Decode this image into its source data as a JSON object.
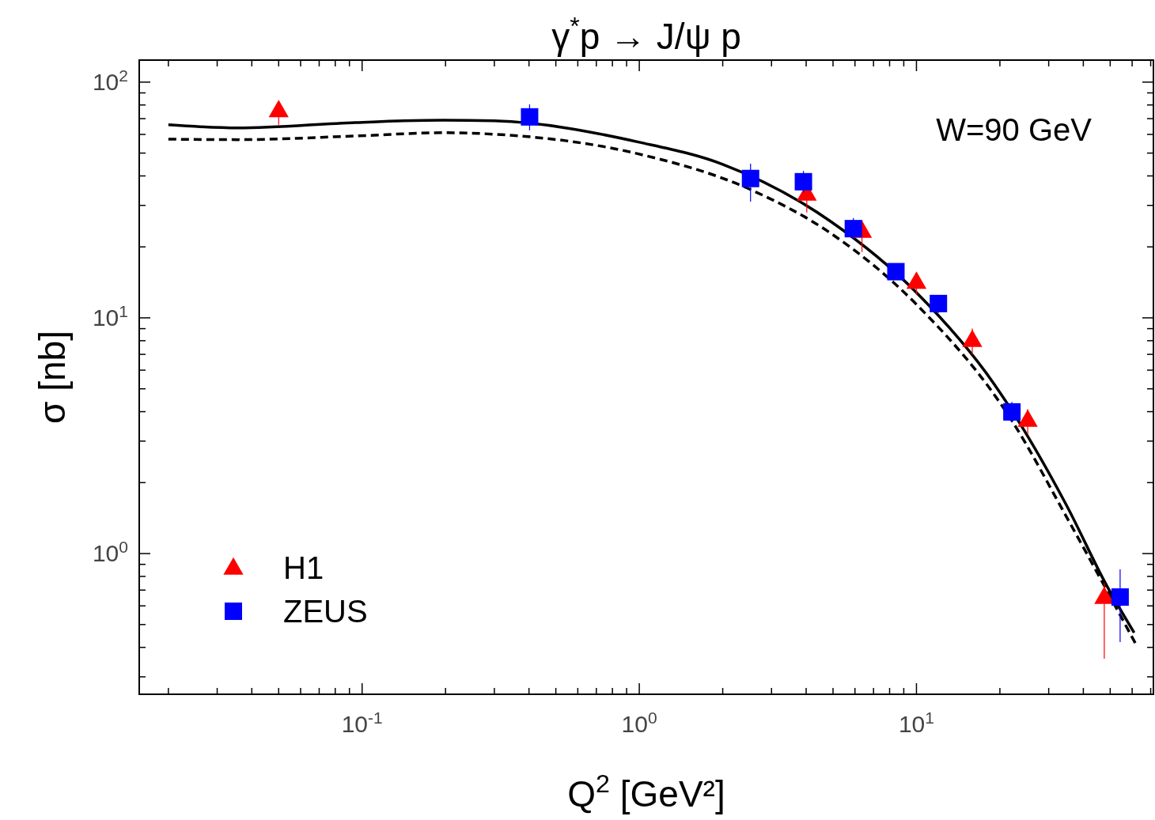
{
  "chart_data": {
    "type": "scatter",
    "title": "γ$^{*}$p → J/ψ p",
    "xlabel": "Q$^{2}$ [GeV²]",
    "ylabel": "σ [nb]",
    "annotations": [
      "W=90 GeV"
    ],
    "log": "xy",
    "grid": false,
    "legend": "bottom left",
    "xlim": [
      0.0157,
      71.6
    ],
    "ylim": [
      0.253,
      124
    ],
    "xticks": [
      {
        "value": 0.02,
        "label": null
      },
      {
        "value": 0.03,
        "label": null
      },
      {
        "value": 0.04,
        "label": null
      },
      {
        "value": 0.05,
        "label": null
      },
      {
        "value": 0.06,
        "label": null
      },
      {
        "value": 0.07,
        "label": null
      },
      {
        "value": 0.08,
        "label": null
      },
      {
        "value": 0.09,
        "label": null
      },
      {
        "value": 0.1,
        "label": "10$^{-1}$"
      },
      {
        "value": 0.2,
        "label": null
      },
      {
        "value": 0.3,
        "label": null
      },
      {
        "value": 0.4,
        "label": null
      },
      {
        "value": 0.5,
        "label": null
      },
      {
        "value": 0.6,
        "label": null
      },
      {
        "value": 0.7,
        "label": null
      },
      {
        "value": 0.8,
        "label": null
      },
      {
        "value": 0.9,
        "label": null
      },
      {
        "value": 1,
        "label": "10$^{0}$"
      },
      {
        "value": 2,
        "label": null
      },
      {
        "value": 3,
        "label": null
      },
      {
        "value": 4,
        "label": null
      },
      {
        "value": 5,
        "label": null
      },
      {
        "value": 6,
        "label": null
      },
      {
        "value": 7,
        "label": null
      },
      {
        "value": 8,
        "label": null
      },
      {
        "value": 9,
        "label": null
      },
      {
        "value": 10,
        "label": "10$^{1}$"
      },
      {
        "value": 20,
        "label": null
      },
      {
        "value": 30,
        "label": null
      },
      {
        "value": 40,
        "label": null
      },
      {
        "value": 50,
        "label": null
      },
      {
        "value": 60,
        "label": null
      },
      {
        "value": 70,
        "label": null
      }
    ],
    "yticks": [
      {
        "value": 0.3,
        "label": null
      },
      {
        "value": 0.4,
        "label": null
      },
      {
        "value": 0.5,
        "label": null
      },
      {
        "value": 0.6,
        "label": null
      },
      {
        "value": 0.7,
        "label": null
      },
      {
        "value": 0.8,
        "label": null
      },
      {
        "value": 0.9,
        "label": null
      },
      {
        "value": 1,
        "label": "10$^{0}$"
      },
      {
        "value": 2,
        "label": null
      },
      {
        "value": 3,
        "label": null
      },
      {
        "value": 4,
        "label": null
      },
      {
        "value": 5,
        "label": null
      },
      {
        "value": 6,
        "label": null
      },
      {
        "value": 7,
        "label": null
      },
      {
        "value": 8,
        "label": null
      },
      {
        "value": 9,
        "label": null
      },
      {
        "value": 10,
        "label": "10$^{1}$"
      },
      {
        "value": 20,
        "label": null
      },
      {
        "value": 30,
        "label": null
      },
      {
        "value": 40,
        "label": null
      },
      {
        "value": 50,
        "label": null
      },
      {
        "value": 60,
        "label": null
      },
      {
        "value": 70,
        "label": null
      },
      {
        "value": 80,
        "label": null
      },
      {
        "value": 90,
        "label": null
      },
      {
        "value": 100,
        "label": "10$^{2}$"
      }
    ],
    "series": [
      {
        "type": "line",
        "color": "#000000",
        "line_style": "solid",
        "marker": "none",
        "x": [
          0.02,
          0.0357,
          0.0949,
          0.196,
          0.3,
          1,
          2.0,
          4.89,
          10,
          19,
          34.9,
          48.5,
          61
        ],
        "values": [
          65.9,
          63.9,
          67.4,
          69.0,
          68.5,
          55.6,
          44.8,
          25.7,
          12.8,
          5.27,
          1.59,
          0.734,
          0.462
        ]
      },
      {
        "type": "line",
        "color": "#000000",
        "line_style": "dashed",
        "marker": "none",
        "x": [
          0.02,
          0.0357,
          0.0949,
          0.196,
          0.3,
          1,
          2.52,
          4.89,
          10,
          22.1,
          34.9,
          62
        ],
        "values": [
          57.3,
          57.0,
          59.1,
          61.0,
          60.1,
          49.5,
          35.0,
          22.9,
          11.4,
          3.66,
          1.42,
          0.411
        ]
      },
      {
        "name": "H1",
        "color": "#ff0000",
        "marker": "triangle",
        "x": [
          0.05,
          4.02,
          6.36,
          10.0,
          15.9,
          25.2,
          47.6
        ],
        "values": [
          76,
          33.6,
          23.4,
          14.2,
          8.06,
          3.69,
          0.654
        ],
        "errors": [
          [
            66,
            80
          ],
          [
            28,
            33.6
          ],
          [
            19,
            26
          ],
          [
            12.5,
            15.5
          ],
          [
            7,
            9
          ],
          [
            3.2,
            4.1
          ],
          [
            0.358,
            0.75
          ]
        ]
      },
      {
        "name": "ZEUS",
        "color": "#0000ff",
        "marker": "square",
        "x": [
          0.402,
          2.52,
          3.91,
          5.92,
          8.43,
          12.0,
          22.1,
          54.3
        ],
        "values": [
          71.2,
          39.0,
          37.8,
          23.9,
          15.7,
          11.5,
          3.99,
          0.654
        ],
        "errors": [
          [
            62.4,
            80.5
          ],
          [
            31.1,
            45.1
          ],
          [
            34,
            42
          ],
          [
            21.5,
            26.5
          ],
          [
            14.5,
            17
          ],
          [
            10.5,
            12.5
          ],
          [
            3.6,
            4.4
          ],
          [
            0.421,
            0.857
          ]
        ]
      }
    ]
  }
}
